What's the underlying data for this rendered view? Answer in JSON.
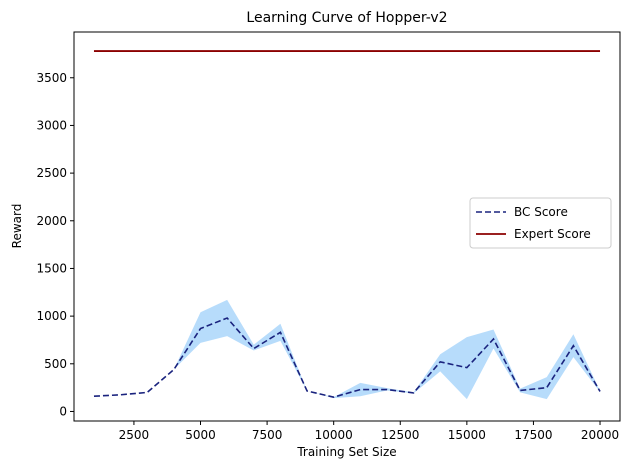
{
  "chart_data": {
    "type": "line",
    "title": "Learning Curve of Hopper-v2",
    "xlabel": "Training Set Size",
    "ylabel": "Reward",
    "xlim": [
      250,
      20750
    ],
    "ylim": [
      -100,
      3980
    ],
    "xticks": [
      2500,
      5000,
      7500,
      10000,
      12500,
      15000,
      17500,
      20000
    ],
    "yticks": [
      0,
      500,
      1000,
      1500,
      2000,
      2500,
      3000,
      3500
    ],
    "grid": false,
    "legend_position": "right",
    "x": [
      1000,
      2000,
      3000,
      4000,
      5000,
      6000,
      7000,
      8000,
      9000,
      10000,
      11000,
      12000,
      13000,
      14000,
      15000,
      16000,
      17000,
      18000,
      19000,
      20000
    ],
    "series": [
      {
        "name": "BC Score",
        "style": "dashed",
        "color": "#1a237e",
        "values": [
          160,
          175,
          200,
          440,
          870,
          980,
          660,
          830,
          215,
          150,
          230,
          230,
          195,
          520,
          460,
          760,
          220,
          250,
          690,
          210
        ],
        "band_upper": [
          160,
          175,
          200,
          440,
          1040,
          1170,
          700,
          920,
          215,
          150,
          300,
          245,
          200,
          600,
          780,
          860,
          240,
          360,
          810,
          215
        ],
        "band_lower": [
          160,
          175,
          200,
          440,
          720,
          790,
          640,
          740,
          215,
          140,
          160,
          220,
          190,
          420,
          130,
          660,
          200,
          130,
          570,
          205
        ]
      },
      {
        "name": "Expert Score",
        "style": "solid",
        "color": "#8b0000",
        "x": [
          1000,
          20000
        ],
        "values": [
          3780,
          3780
        ]
      }
    ],
    "band_color": "#90caf9"
  }
}
